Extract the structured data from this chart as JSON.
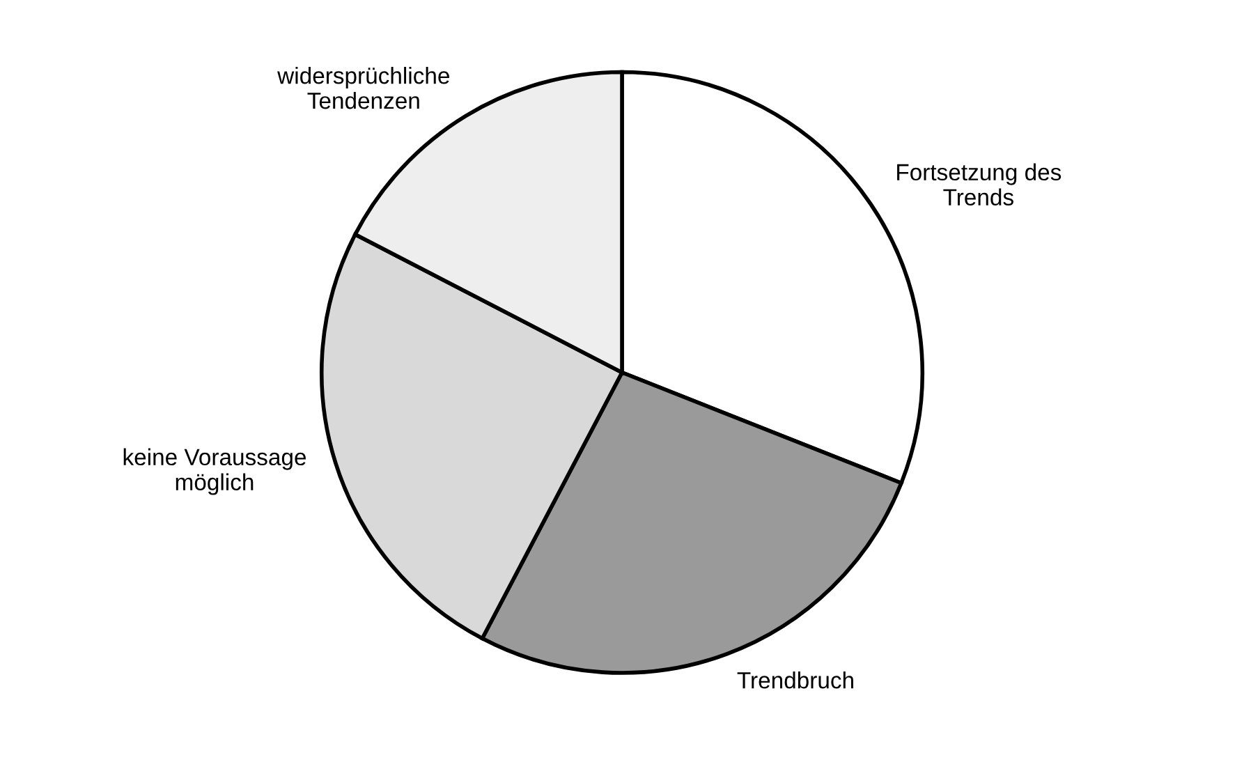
{
  "chart_data": {
    "type": "pie",
    "categories": [
      "Fortsetzung des\nTrends",
      "Trendbruch",
      "keine Voraussage\nmöglich",
      "widersprüchliche\nTendenzen"
    ],
    "values": [
      31,
      26.7,
      24.9,
      17.4
    ],
    "colors": [
      "#ffffff",
      "#9a9a9a",
      "#d9d9d9",
      "#eeeeee"
    ]
  }
}
